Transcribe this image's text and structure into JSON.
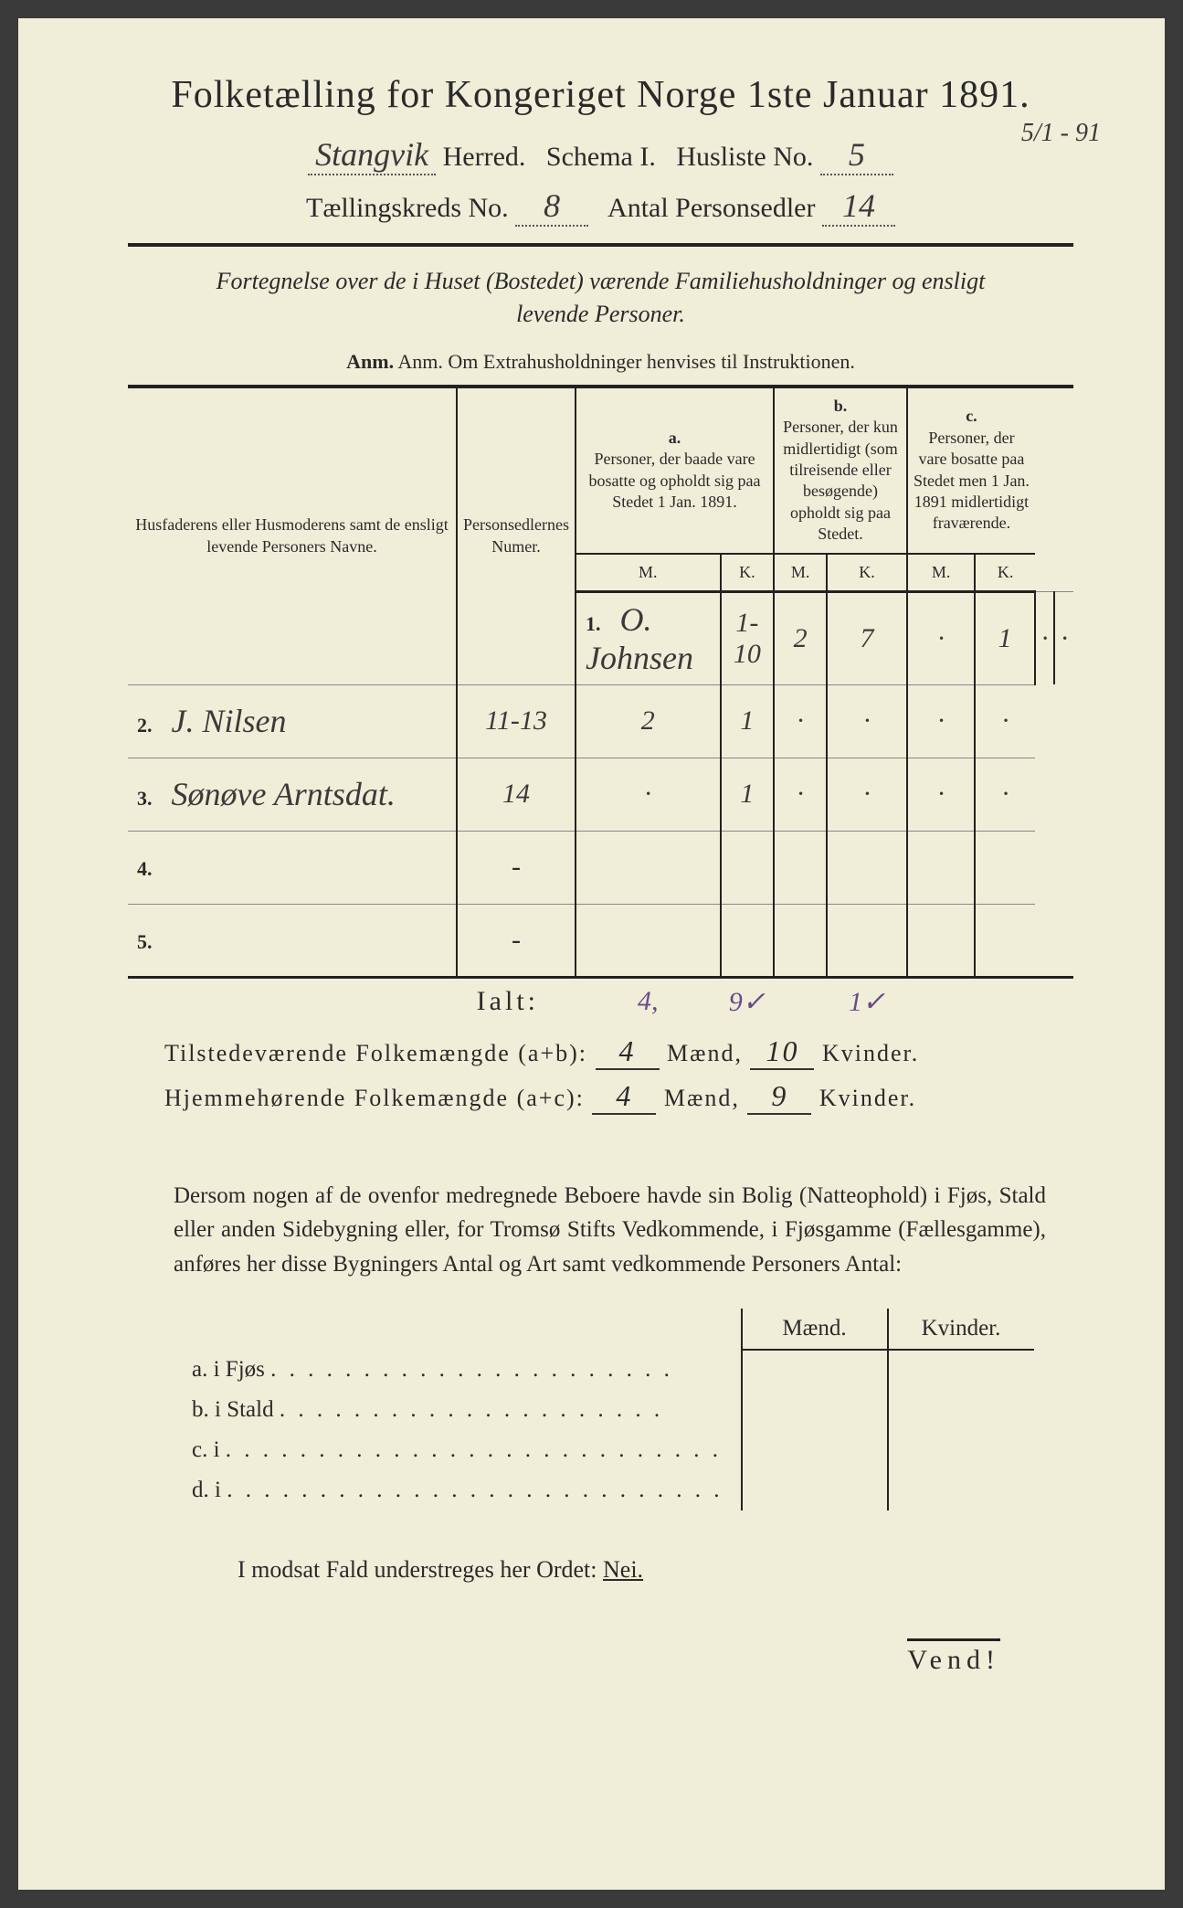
{
  "colors": {
    "paper": "#f0eed8",
    "ink": "#2a2a2a",
    "purple_ink": "#6a4a8a",
    "border": "#222222"
  },
  "title": "Folketælling for Kongeriget Norge 1ste Januar 1891.",
  "header": {
    "herred_value": "Stangvik",
    "herred_label": "Herred.",
    "schema_label": "Schema I.",
    "husliste_label": "Husliste No.",
    "husliste_value": "5",
    "kreds_label": "Tællingskreds No.",
    "kreds_value": "8",
    "personsedler_label": "Antal Personsedler",
    "personsedler_value": "14",
    "date_note": "5/1 - 91"
  },
  "intro": "Fortegnelse over de i Huset (Bostedet) værende Familiehusholdninger og ensligt levende Personer.",
  "anm": "Anm. Om Extrahusholdninger henvises til Instruktionen.",
  "table_headers": {
    "names": "Husfaderens eller Husmoderens samt de ensligt levende Personers Navne.",
    "numer": "Personsedlernes Numer.",
    "a_label": "a.",
    "a_text": "Personer, der baade vare bosatte og opholdt sig paa Stedet 1 Jan. 1891.",
    "b_label": "b.",
    "b_text": "Personer, der kun midlertidigt (som tilreisende eller besøgende) opholdt sig paa Stedet.",
    "c_label": "c.",
    "c_text": "Personer, der vare bosatte paa Stedet men 1 Jan. 1891 midlertidigt fraværende.",
    "m": "M.",
    "k": "K."
  },
  "rows": [
    {
      "n": "1.",
      "name": "O. Johnsen",
      "num": "1-10",
      "am": "2",
      "ak": "7",
      "bm": "·",
      "bk": "1",
      "cm": "·",
      "ck": "·"
    },
    {
      "n": "2.",
      "name": "J. Nilsen",
      "num": "11-13",
      "am": "2",
      "ak": "1",
      "bm": "·",
      "bk": "·",
      "cm": "·",
      "ck": "·"
    },
    {
      "n": "3.",
      "name": "Sønøve Arntsdat.",
      "num": "14",
      "am": "·",
      "ak": "1",
      "bm": "·",
      "bk": "·",
      "cm": "·",
      "ck": "·"
    },
    {
      "n": "4.",
      "name": "",
      "num": "-",
      "am": "",
      "ak": "",
      "bm": "",
      "bk": "",
      "cm": "",
      "ck": ""
    },
    {
      "n": "5.",
      "name": "",
      "num": "-",
      "am": "",
      "ak": "",
      "bm": "",
      "bk": "",
      "cm": "",
      "ck": ""
    }
  ],
  "ialt": {
    "label": "Ialt:",
    "am": "4,",
    "ak": "9✓",
    "bk": "1✓"
  },
  "summary": {
    "line1_label": "Tilstedeværende Folkemængde (a+b):",
    "line1_m": "4",
    "line1_k": "10",
    "line2_label": "Hjemmehørende Folkemængde (a+c):",
    "line2_m": "4",
    "line2_k": "9",
    "maend": "Mænd,",
    "kvinder": "Kvinder."
  },
  "para": "Dersom nogen af de ovenfor medregnede Beboere havde sin Bolig (Natteophold) i Fjøs, Stald eller anden Sidebygning eller, for Tromsø Stifts Vedkommende, i Fjøsgamme (Fællesgamme), anføres her disse Bygningers Antal og Art samt vedkommende Personers Antal:",
  "lower": {
    "maend": "Mænd.",
    "kvinder": "Kvinder.",
    "a": "a. i    Fjøs",
    "b": "b. i    Stald",
    "c": "c. i",
    "d": "d. i"
  },
  "nei": "I modsat Fald understreges her Ordet: Nei.",
  "vend": "Vend!"
}
